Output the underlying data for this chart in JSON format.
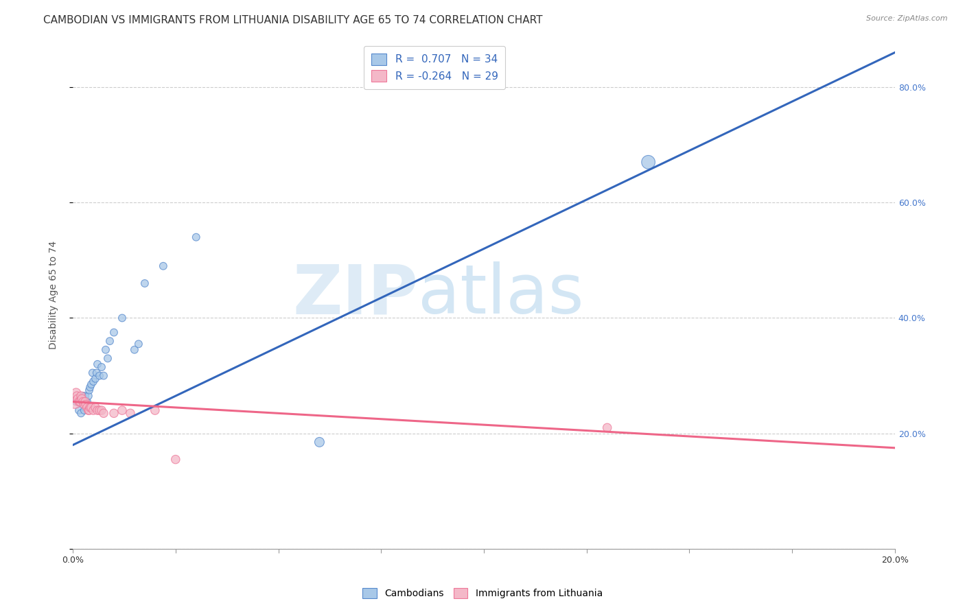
{
  "title": "CAMBODIAN VS IMMIGRANTS FROM LITHUANIA DISABILITY AGE 65 TO 74 CORRELATION CHART",
  "source": "Source: ZipAtlas.com",
  "ylabel": "Disability Age 65 to 74",
  "ylabel_right_ticks": [
    "20.0%",
    "40.0%",
    "60.0%",
    "80.0%"
  ],
  "ylabel_right_vals": [
    0.2,
    0.4,
    0.6,
    0.8
  ],
  "watermark_zip": "ZIP",
  "watermark_atlas": "atlas",
  "legend_blue_label": "R =  0.707   N = 34",
  "legend_pink_label": "R = -0.264   N = 29",
  "legend_label_blue": "Cambodians",
  "legend_label_pink": "Immigrants from Lithuania",
  "blue_color": "#a8c8e8",
  "pink_color": "#f4b8c8",
  "blue_edge_color": "#5588cc",
  "pink_edge_color": "#ee7799",
  "blue_line_color": "#3366bb",
  "pink_line_color": "#ee6688",
  "blue_scatter": [
    [
      0.0008,
      0.255
    ],
    [
      0.0015,
      0.255
    ],
    [
      0.0015,
      0.24
    ],
    [
      0.002,
      0.255
    ],
    [
      0.002,
      0.235
    ],
    [
      0.0025,
      0.265
    ],
    [
      0.0028,
      0.24
    ],
    [
      0.003,
      0.265
    ],
    [
      0.0032,
      0.255
    ],
    [
      0.0035,
      0.255
    ],
    [
      0.0038,
      0.265
    ],
    [
      0.004,
      0.275
    ],
    [
      0.0042,
      0.28
    ],
    [
      0.0045,
      0.285
    ],
    [
      0.0048,
      0.305
    ],
    [
      0.005,
      0.29
    ],
    [
      0.0055,
      0.295
    ],
    [
      0.0058,
      0.305
    ],
    [
      0.006,
      0.32
    ],
    [
      0.0065,
      0.3
    ],
    [
      0.007,
      0.315
    ],
    [
      0.0075,
      0.3
    ],
    [
      0.008,
      0.345
    ],
    [
      0.0085,
      0.33
    ],
    [
      0.009,
      0.36
    ],
    [
      0.01,
      0.375
    ],
    [
      0.012,
      0.4
    ],
    [
      0.015,
      0.345
    ],
    [
      0.016,
      0.355
    ],
    [
      0.022,
      0.49
    ],
    [
      0.0175,
      0.46
    ],
    [
      0.03,
      0.54
    ],
    [
      0.14,
      0.67
    ],
    [
      0.06,
      0.185
    ]
  ],
  "blue_scatter_sizes": [
    60,
    60,
    60,
    60,
    60,
    60,
    60,
    60,
    60,
    60,
    60,
    60,
    60,
    60,
    60,
    60,
    60,
    60,
    60,
    60,
    60,
    60,
    60,
    60,
    60,
    60,
    60,
    60,
    60,
    60,
    60,
    60,
    200,
    100
  ],
  "pink_scatter": [
    [
      0.0005,
      0.255
    ],
    [
      0.0008,
      0.27
    ],
    [
      0.001,
      0.265
    ],
    [
      0.0012,
      0.26
    ],
    [
      0.0015,
      0.255
    ],
    [
      0.0018,
      0.255
    ],
    [
      0.002,
      0.265
    ],
    [
      0.0022,
      0.26
    ],
    [
      0.0025,
      0.255
    ],
    [
      0.0028,
      0.25
    ],
    [
      0.003,
      0.255
    ],
    [
      0.0032,
      0.25
    ],
    [
      0.0035,
      0.245
    ],
    [
      0.0038,
      0.24
    ],
    [
      0.004,
      0.24
    ],
    [
      0.0042,
      0.245
    ],
    [
      0.0045,
      0.245
    ],
    [
      0.005,
      0.24
    ],
    [
      0.0055,
      0.245
    ],
    [
      0.006,
      0.24
    ],
    [
      0.0065,
      0.24
    ],
    [
      0.007,
      0.24
    ],
    [
      0.0075,
      0.235
    ],
    [
      0.01,
      0.235
    ],
    [
      0.012,
      0.24
    ],
    [
      0.014,
      0.235
    ],
    [
      0.02,
      0.24
    ],
    [
      0.025,
      0.155
    ],
    [
      0.13,
      0.21
    ]
  ],
  "pink_scatter_sizes": [
    200,
    100,
    80,
    80,
    80,
    80,
    80,
    80,
    80,
    80,
    80,
    80,
    80,
    80,
    80,
    80,
    80,
    80,
    80,
    80,
    80,
    80,
    80,
    80,
    80,
    80,
    80,
    80,
    80
  ],
  "blue_line_x": [
    0.0,
    0.2
  ],
  "blue_line_y": [
    0.18,
    0.86
  ],
  "pink_line_x": [
    0.0,
    0.2
  ],
  "pink_line_y": [
    0.255,
    0.175
  ],
  "xlim": [
    0.0,
    0.2
  ],
  "ylim": [
    0.0,
    0.88
  ],
  "x_ticks": [
    0.0,
    0.025,
    0.05,
    0.075,
    0.1,
    0.125,
    0.15,
    0.175,
    0.2
  ],
  "grid_color": "#cccccc",
  "background_color": "#ffffff",
  "title_fontsize": 11,
  "axis_label_fontsize": 10,
  "tick_fontsize": 9,
  "right_tick_color": "#4477cc"
}
